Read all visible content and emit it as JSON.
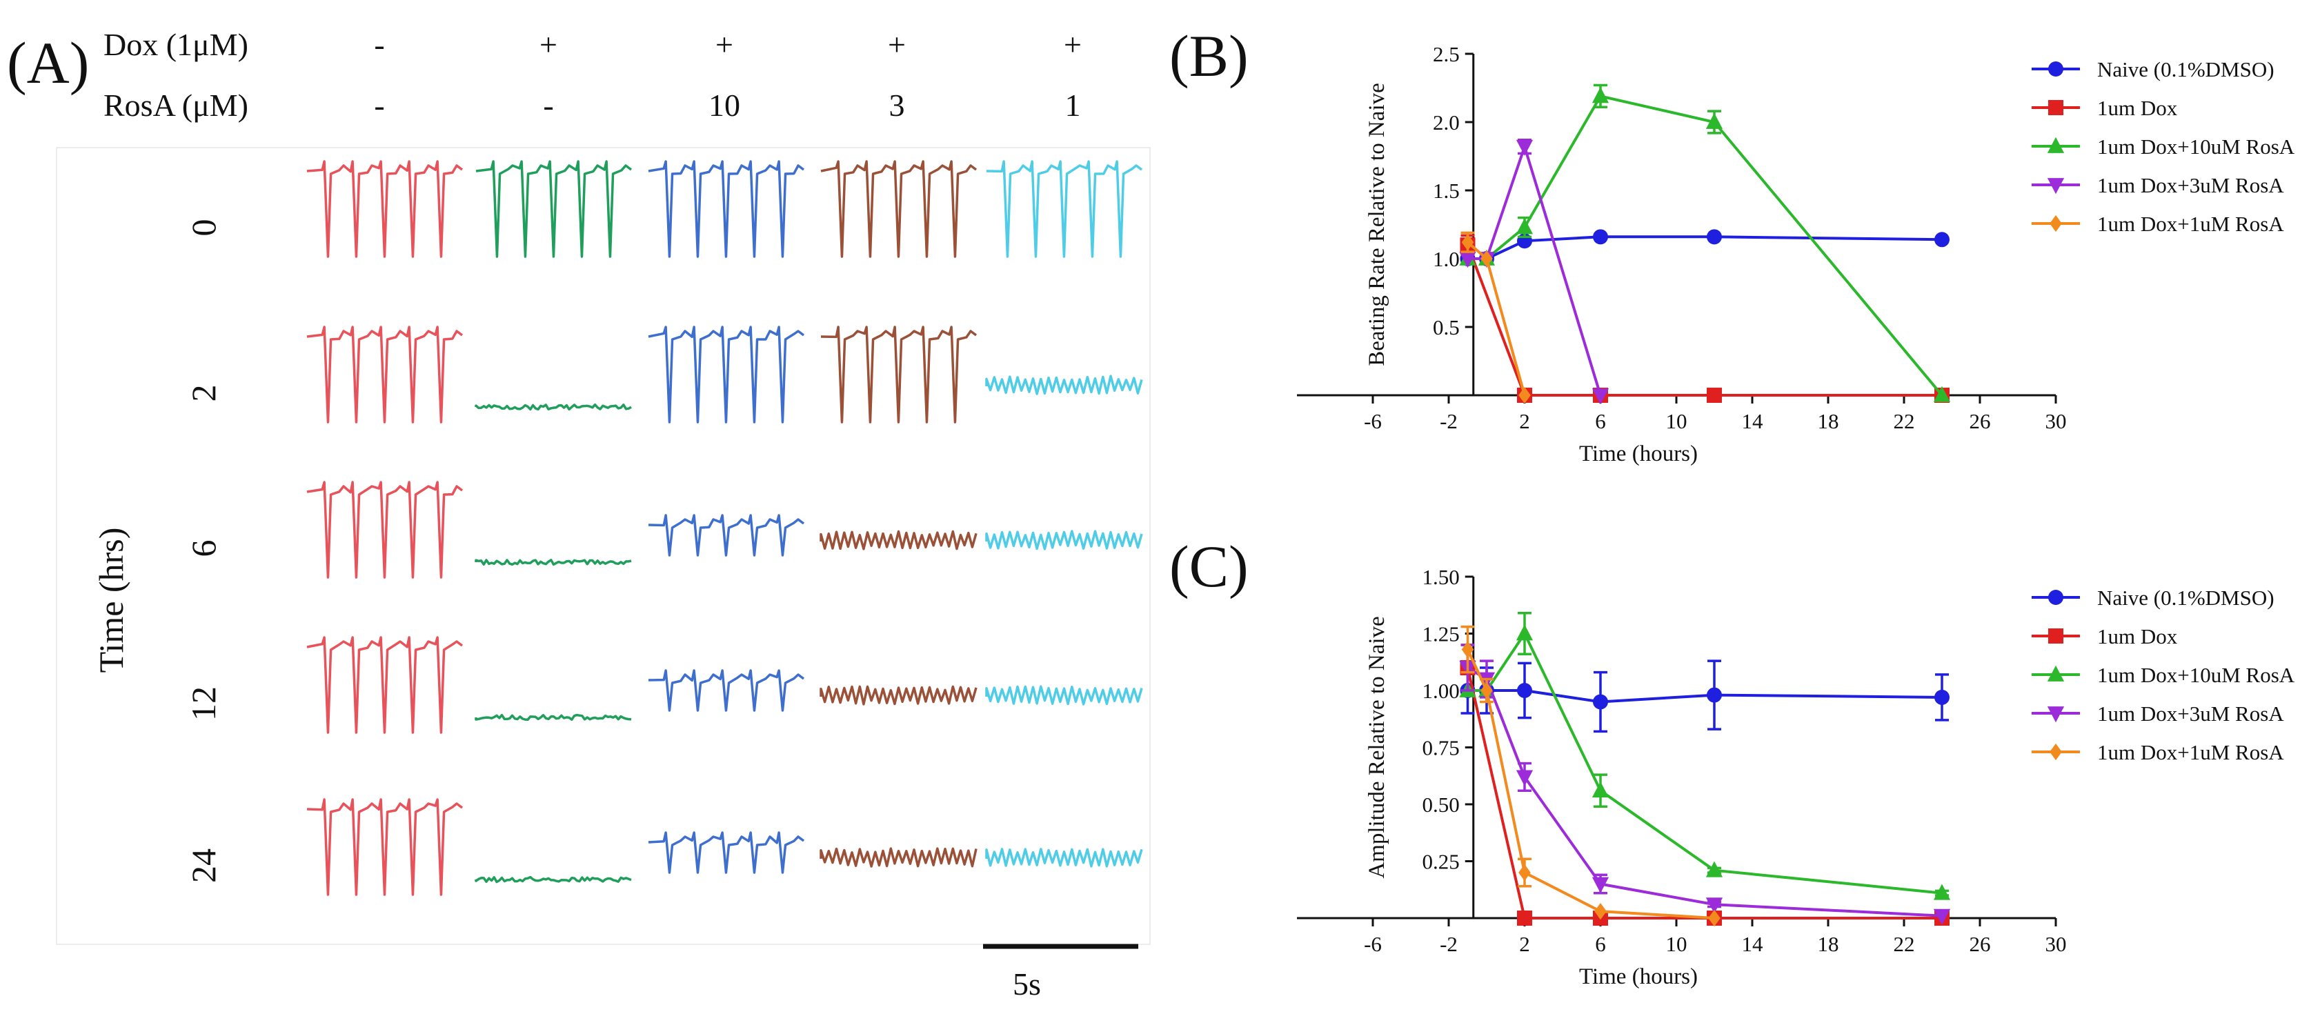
{
  "panelA": {
    "label": "(A)",
    "dox_label": "Dox (1μM)",
    "rosa_label": "RosA (μM)",
    "dox_values": [
      "-",
      "+",
      "+",
      "+",
      "+"
    ],
    "rosa_values": [
      "-",
      "-",
      "10",
      "3",
      "1"
    ],
    "time_axis_label": "Time (hrs)",
    "time_points": [
      "0",
      "2",
      "6",
      "12",
      "24"
    ],
    "scale_bar_label": "5s",
    "trace_colors": [
      "#e8525a",
      "#1f9e5c",
      "#3f6fce",
      "#9a5138",
      "#4fcde6"
    ],
    "trace_states": [
      [
        "beating",
        "beating",
        "beating",
        "beating",
        "beating"
      ],
      [
        "beating",
        "flat",
        "beating",
        "beating",
        "small"
      ],
      [
        "beating",
        "flat",
        "weak",
        "small",
        "small"
      ],
      [
        "beating",
        "flat",
        "weak",
        "small",
        "small"
      ],
      [
        "beating",
        "flat",
        "weak",
        "small",
        "small"
      ]
    ]
  },
  "chart_data": [
    {
      "panel": "(B)",
      "type": "line",
      "xlabel": "Time (hours)",
      "ylabel": "Beating Rate Relative to Naive",
      "xlim": [
        -10,
        30
      ],
      "ylim": [
        0,
        2.5
      ],
      "xticks": [
        -6,
        -2,
        2,
        6,
        10,
        14,
        18,
        22,
        26,
        30
      ],
      "yticks": [
        0.5,
        1.0,
        1.5,
        2.0,
        2.5
      ],
      "ytick_labels": [
        "0.5",
        "1.0",
        "1.5",
        "2.0",
        "2.5"
      ],
      "legend_position": "top-right",
      "series": [
        {
          "name": "Naive (0.1%DMSO)",
          "color": "#1f1fe0",
          "marker": "circle",
          "x": [
            -1,
            0,
            2,
            6,
            12,
            24
          ],
          "y": [
            1.0,
            1.0,
            1.13,
            1.16,
            1.16,
            1.14
          ],
          "err": [
            0,
            0,
            0,
            0,
            0,
            0
          ]
        },
        {
          "name": "1um Dox",
          "color": "#e01f1f",
          "marker": "square",
          "x": [
            -1,
            2,
            6,
            12,
            24
          ],
          "y": [
            1.1,
            0,
            0,
            0,
            0
          ],
          "err": [
            0.07,
            0,
            0,
            0,
            0
          ]
        },
        {
          "name": "1um Dox+10uM RosA",
          "color": "#2bb82b",
          "marker": "triangle-up",
          "x": [
            -1,
            0,
            2,
            6,
            12,
            24
          ],
          "y": [
            1.0,
            1.0,
            1.23,
            2.19,
            2.0,
            0
          ],
          "err": [
            0,
            0,
            0.07,
            0.08,
            0.08,
            0
          ]
        },
        {
          "name": "1um Dox+3uM RosA",
          "color": "#9c2bd9",
          "marker": "triangle-down",
          "x": [
            -1,
            0,
            2,
            6
          ],
          "y": [
            1.0,
            1.0,
            1.82,
            0
          ],
          "err": [
            0,
            0,
            0.05,
            0
          ]
        },
        {
          "name": "1um Dox+1uM RosA",
          "color": "#f28a1e",
          "marker": "diamond",
          "x": [
            -1,
            0,
            2
          ],
          "y": [
            1.12,
            1.0,
            0
          ],
          "err": [
            0.07,
            0,
            0
          ]
        }
      ]
    },
    {
      "panel": "(C)",
      "type": "line",
      "xlabel": "Time (hours)",
      "ylabel": "Amplitude Relative to Naive",
      "xlim": [
        -10,
        30
      ],
      "ylim": [
        0,
        1.5
      ],
      "xticks": [
        -6,
        -2,
        2,
        6,
        10,
        14,
        18,
        22,
        26,
        30
      ],
      "yticks": [
        0.25,
        0.5,
        0.75,
        1.0,
        1.25,
        1.5
      ],
      "ytick_labels": [
        "0.25",
        "0.50",
        "0.75",
        "1.00",
        "1.25",
        "1.50"
      ],
      "legend_position": "top-right",
      "series": [
        {
          "name": "Naive (0.1%DMSO)",
          "color": "#1f1fe0",
          "marker": "circle",
          "x": [
            -1,
            0,
            2,
            6,
            12,
            24
          ],
          "y": [
            1.0,
            1.0,
            1.0,
            0.95,
            0.98,
            0.97
          ],
          "err": [
            0.1,
            0.1,
            0.12,
            0.13,
            0.15,
            0.1
          ]
        },
        {
          "name": "1um Dox",
          "color": "#e01f1f",
          "marker": "square",
          "x": [
            -1,
            2,
            6,
            12,
            24
          ],
          "y": [
            1.1,
            0,
            0,
            0,
            0
          ],
          "err": [
            0.1,
            0,
            0,
            0,
            0
          ]
        },
        {
          "name": "1um Dox+10uM RosA",
          "color": "#2bb82b",
          "marker": "triangle-up",
          "x": [
            -1,
            0,
            2,
            6,
            12,
            24
          ],
          "y": [
            1.0,
            1.0,
            1.25,
            0.56,
            0.21,
            0.11
          ],
          "err": [
            0,
            0,
            0.09,
            0.07,
            0.01,
            0.01
          ]
        },
        {
          "name": "1um Dox+3uM RosA",
          "color": "#9c2bd9",
          "marker": "triangle-down",
          "x": [
            -1,
            0,
            2,
            6,
            12,
            24
          ],
          "y": [
            1.1,
            1.05,
            0.62,
            0.15,
            0.06,
            0.01
          ],
          "err": [
            0.1,
            0.08,
            0.06,
            0.04,
            0.01,
            0
          ]
        },
        {
          "name": "1um Dox+1uM RosA",
          "color": "#f28a1e",
          "marker": "diamond",
          "x": [
            -1,
            0,
            2,
            6,
            12
          ],
          "y": [
            1.18,
            1.0,
            0.2,
            0.03,
            0.0
          ],
          "err": [
            0.1,
            0.05,
            0.06,
            0,
            0
          ]
        }
      ]
    }
  ]
}
